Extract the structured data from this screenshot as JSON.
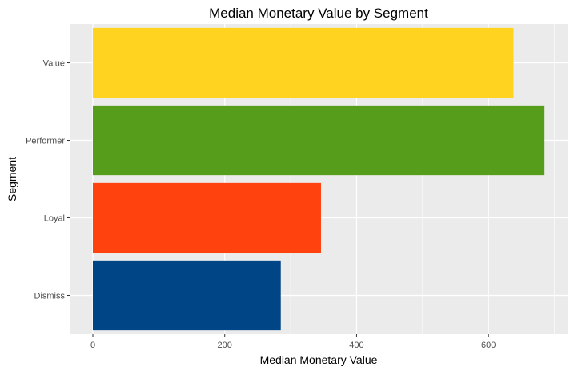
{
  "chart_data": {
    "type": "bar",
    "orientation": "horizontal",
    "title": "Median Monetary Value by Segment",
    "xlabel": "Median Monetary Value",
    "ylabel": "Segment",
    "categories": [
      "Dismiss",
      "Loyal",
      "Performer",
      "Value"
    ],
    "values": [
      285,
      346,
      685,
      638
    ],
    "colors": [
      "#004586",
      "#ff420e",
      "#579d1c",
      "#ffd320"
    ],
    "xticks": [
      0,
      200,
      400,
      600
    ],
    "xtick_labels": [
      "0",
      "200",
      "400",
      "600"
    ],
    "xlim": [
      -34,
      720
    ],
    "grid": true,
    "legend": "none"
  }
}
